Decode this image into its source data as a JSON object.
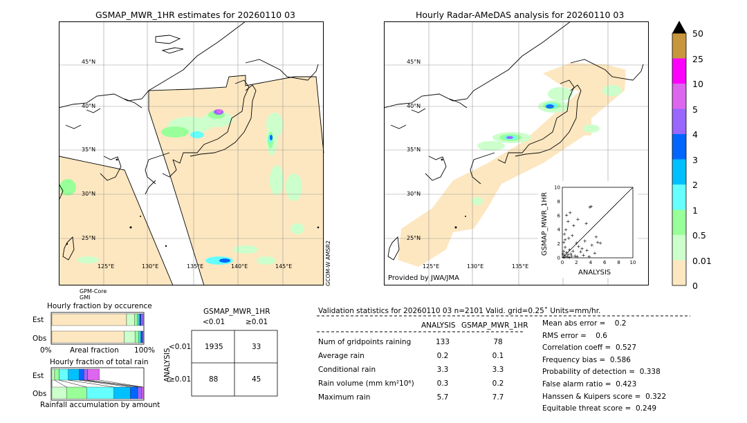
{
  "maps": {
    "left": {
      "title": "GSMAP_MWR_1HR estimates for 20260110 03",
      "lat_labels": [
        "45°N",
        "40°N",
        "35°N",
        "30°N",
        "25°N"
      ],
      "lon_labels": [
        "125°E",
        "130°E",
        "135°E",
        "140°E",
        "145°E"
      ],
      "sat_label_left": [
        "GPM-Core",
        "GMI"
      ],
      "sat_label_right": "GCOM-W AMSR2"
    },
    "right": {
      "title": "Hourly Radar-AMeDAS analysis for 20260110 03",
      "lat_labels": [
        "45°N",
        "40°N",
        "35°N",
        "30°N",
        "25°N"
      ],
      "lon_labels": [
        "125°E",
        "130°E",
        "135°E"
      ],
      "credit": "Provided by JWA/JMA"
    }
  },
  "colorbar": {
    "labels": [
      "50",
      "25",
      "10",
      "5",
      "4",
      "3",
      "2",
      "1",
      "0.5",
      "0.01",
      "0"
    ],
    "colors": [
      "#c8963c",
      "#ff00ff",
      "#dd66ee",
      "#9966ff",
      "#0066ff",
      "#00c0ff",
      "#66ffff",
      "#99ff99",
      "#ccffcc",
      "#fde7c0"
    ],
    "over_color": "#000000"
  },
  "chart_data": [
    {
      "type": "scatter",
      "title": "",
      "xlabel": "ANALYSIS",
      "ylabel": "GSMAP_MWR_1HR",
      "xlim": [
        0,
        10
      ],
      "ylim": [
        0,
        10
      ],
      "ticks": [
        "0",
        "2",
        "4",
        "6",
        "8",
        "10"
      ],
      "points": [
        [
          0.2,
          0.1
        ],
        [
          0.3,
          0.4
        ],
        [
          0.5,
          0.2
        ],
        [
          0.6,
          0.8
        ],
        [
          0.8,
          0.5
        ],
        [
          1.0,
          1.2
        ],
        [
          0.4,
          1.5
        ],
        [
          0.2,
          2.2
        ],
        [
          0.9,
          2.8
        ],
        [
          1.2,
          0.6
        ],
        [
          1.5,
          1.0
        ],
        [
          1.8,
          0.3
        ],
        [
          2.0,
          2.1
        ],
        [
          2.3,
          1.6
        ],
        [
          2.6,
          0.9
        ],
        [
          3.0,
          0.4
        ],
        [
          3.2,
          2.4
        ],
        [
          3.5,
          1.1
        ],
        [
          3.8,
          0.2
        ],
        [
          4.2,
          1.8
        ],
        [
          4.6,
          0.7
        ],
        [
          0.5,
          4.0
        ],
        [
          0.8,
          5.2
        ],
        [
          1.1,
          6.4
        ],
        [
          0.3,
          3.4
        ],
        [
          1.6,
          4.6
        ],
        [
          2.2,
          5.5
        ],
        [
          3.4,
          4.9
        ],
        [
          3.9,
          7.2
        ],
        [
          4.1,
          7.3
        ],
        [
          0.6,
          6.1
        ],
        [
          1.4,
          3.2
        ],
        [
          0.1,
          0.6
        ],
        [
          0.7,
          0.2
        ],
        [
          1.3,
          0.3
        ],
        [
          2.8,
          1.3
        ],
        [
          0.4,
          2.6
        ],
        [
          5.0,
          2.2
        ],
        [
          5.4,
          2.1
        ],
        [
          4.8,
          3.0
        ],
        [
          0.2,
          1.0
        ],
        [
          1.0,
          0.1
        ],
        [
          2.1,
          0.2
        ]
      ]
    },
    {
      "type": "bar",
      "title": "Hourly fraction by occurence",
      "categories": [
        "Est",
        "Obs"
      ],
      "xlabel": "Areal fraction",
      "tick_labels": [
        "0%",
        "100%"
      ],
      "series_colors": [
        "#fde7c0",
        "#ccffcc",
        "#99ff99",
        "#66ffff",
        "#00c0ff",
        "#0066ff",
        "#9966ff"
      ],
      "stacks": [
        [
          0.818,
          0.09,
          0.03,
          0.015,
          0.012,
          0.01,
          0.025
        ],
        [
          0.79,
          0.12,
          0.04,
          0.018,
          0.012,
          0.01,
          0.01
        ]
      ]
    },
    {
      "type": "bar",
      "title": "Hourly fraction of total rain",
      "categories": [
        "Est",
        "Obs"
      ],
      "xlabel": "Rainfall accumulation by amount",
      "series_colors": [
        "#ccffcc",
        "#99ff99",
        "#66ffff",
        "#00c0ff",
        "#0066ff",
        "#9966ff",
        "#dd66ee"
      ],
      "stacks": [
        [
          0.03,
          0.05,
          0.1,
          0.12,
          0.05,
          0.04,
          0.13
        ],
        [
          0.16,
          0.22,
          0.3,
          0.18,
          0.08,
          0.04,
          0.02
        ]
      ]
    },
    {
      "type": "table",
      "title": "GSMAP_MWR_1HR",
      "col_headers": [
        "<0.01",
        "≥0.01"
      ],
      "row_axis_label": "ANALYSIS",
      "row_headers": [
        "<0.01",
        "≥0.01"
      ],
      "cells": [
        [
          "1935",
          "33"
        ],
        [
          "88",
          "45"
        ]
      ]
    }
  ],
  "validation": {
    "header": "Validation statistics for 20260110 03  n=2101 Valid. grid=0.25˚ Units=mm/hr.",
    "col_analysis": "ANALYSIS",
    "col_gsmap": "GSMAP_MWR_1HR",
    "rows": [
      {
        "label": "Num of gridpoints raining",
        "analysis": "133",
        "gsmap": "78"
      },
      {
        "label": "Average rain",
        "analysis": "0.2",
        "gsmap": "0.1"
      },
      {
        "label": "Conditional rain",
        "analysis": "3.3",
        "gsmap": "3.3"
      },
      {
        "label": "Rain volume (mm km²10⁶)",
        "analysis": "0.3",
        "gsmap": "0.2"
      },
      {
        "label": "Maximum rain",
        "analysis": "5.7",
        "gsmap": "7.7"
      }
    ],
    "scores": [
      "Mean abs error =    0.2",
      "RMS error =    0.6",
      "Correlation coeff =  0.527",
      "Frequency bias =  0.586",
      "Probability of detection =  0.338",
      "False alarm ratio =  0.423",
      "Hanssen & Kuipers score =  0.322",
      "Equitable threat score =  0.249"
    ]
  }
}
